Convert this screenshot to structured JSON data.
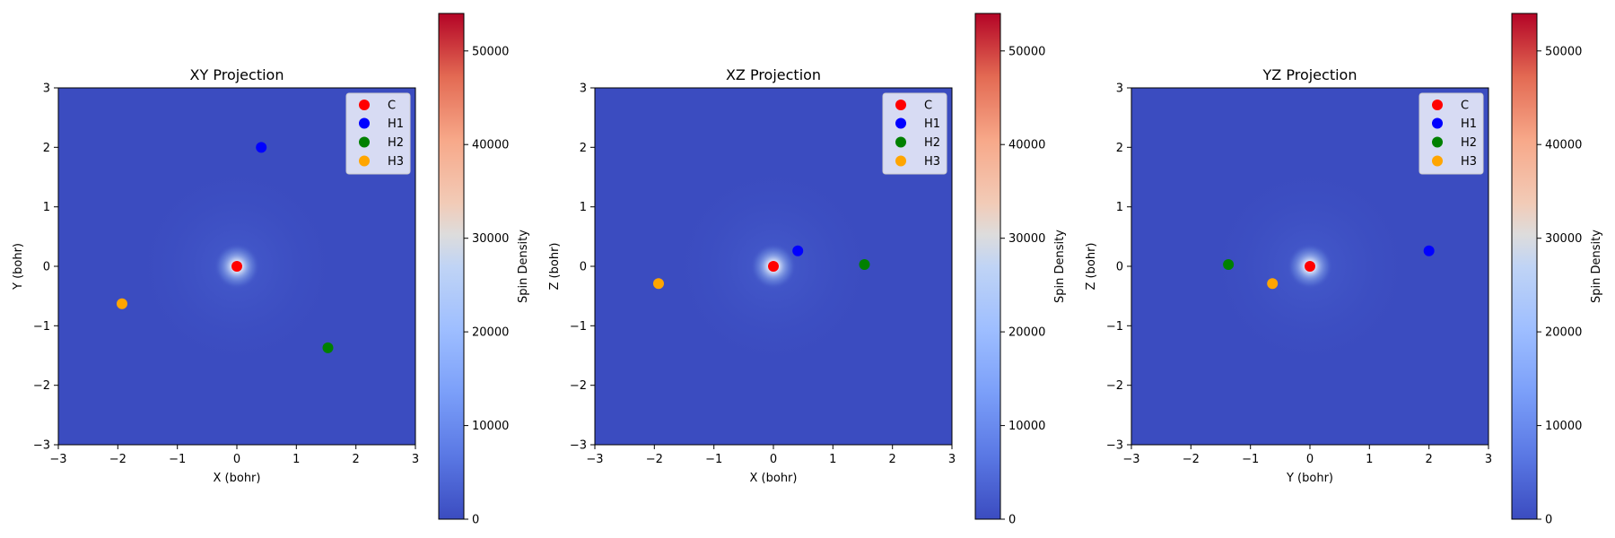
{
  "chart_data": [
    {
      "type": "scatter",
      "title": "XY Projection",
      "xlabel": "X (bohr)",
      "ylabel": "Y (bohr)",
      "xlim": [
        -3,
        3
      ],
      "ylim": [
        -3,
        3
      ],
      "xticks": [
        "−3",
        "−2",
        "−1",
        "0",
        "1",
        "2",
        "3"
      ],
      "yticks": [
        "−3",
        "−2",
        "−1",
        "0",
        "1",
        "2",
        "3"
      ],
      "background": "spin density heatmap, peak at (0, 0)",
      "legend_position": "top-right",
      "series": [
        {
          "name": "C",
          "color": "#ff0000",
          "x": 0.0,
          "y": 0.0
        },
        {
          "name": "H1",
          "color": "#0000ff",
          "x": 0.41,
          "y": 2.0
        },
        {
          "name": "H2",
          "color": "#008000",
          "x": 1.53,
          "y": -1.37
        },
        {
          "name": "H3",
          "color": "#ffa500",
          "x": -1.93,
          "y": -0.63
        }
      ],
      "colorbar": {
        "label": "Spin Density",
        "min": 0,
        "max": 54000,
        "ticks": [
          "0",
          "10000",
          "20000",
          "30000",
          "40000",
          "50000"
        ],
        "colormap": "coolwarm"
      }
    },
    {
      "type": "scatter",
      "title": "XZ Projection",
      "xlabel": "X (bohr)",
      "ylabel": "Z (bohr)",
      "xlim": [
        -3,
        3
      ],
      "ylim": [
        -3,
        3
      ],
      "xticks": [
        "−3",
        "−2",
        "−1",
        "0",
        "1",
        "2",
        "3"
      ],
      "yticks": [
        "−3",
        "−2",
        "−1",
        "0",
        "1",
        "2",
        "3"
      ],
      "background": "spin density heatmap, peak at (0, 0)",
      "legend_position": "top-right",
      "series": [
        {
          "name": "C",
          "color": "#ff0000",
          "x": 0.0,
          "y": 0.0
        },
        {
          "name": "H1",
          "color": "#0000ff",
          "x": 0.41,
          "y": 0.26
        },
        {
          "name": "H2",
          "color": "#008000",
          "x": 1.53,
          "y": 0.03
        },
        {
          "name": "H3",
          "color": "#ffa500",
          "x": -1.93,
          "y": -0.29
        }
      ],
      "colorbar": {
        "label": "Spin Density",
        "min": 0,
        "max": 54000,
        "ticks": [
          "0",
          "10000",
          "20000",
          "30000",
          "40000",
          "50000"
        ],
        "colormap": "coolwarm"
      }
    },
    {
      "type": "scatter",
      "title": "YZ Projection",
      "xlabel": "Y (bohr)",
      "ylabel": "Z (bohr)",
      "xlim": [
        -3,
        3
      ],
      "ylim": [
        -3,
        3
      ],
      "xticks": [
        "−3",
        "−2",
        "−1",
        "0",
        "1",
        "2",
        "3"
      ],
      "yticks": [
        "−3",
        "−2",
        "−1",
        "0",
        "1",
        "2",
        "3"
      ],
      "background": "spin density heatmap, peak at (0, 0)",
      "legend_position": "top-right",
      "series": [
        {
          "name": "C",
          "color": "#ff0000",
          "x": 0.0,
          "y": 0.0
        },
        {
          "name": "H1",
          "color": "#0000ff",
          "x": 2.0,
          "y": 0.26
        },
        {
          "name": "H2",
          "color": "#008000",
          "x": -1.37,
          "y": 0.03
        },
        {
          "name": "H3",
          "color": "#ffa500",
          "x": -0.63,
          "y": -0.29
        }
      ],
      "colorbar": {
        "label": "Spin Density",
        "min": 0,
        "max": 54000,
        "ticks": [
          "0",
          "10000",
          "20000",
          "30000",
          "40000",
          "50000"
        ],
        "colormap": "coolwarm"
      }
    }
  ]
}
